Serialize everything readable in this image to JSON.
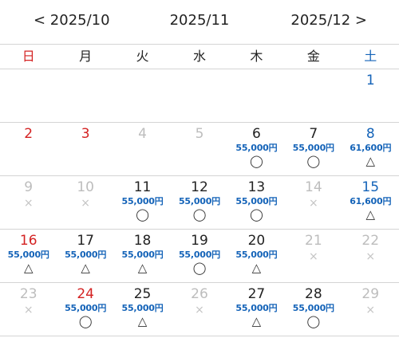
{
  "nav": {
    "prev": "< 2025/10",
    "current": "2025/11",
    "next": "2025/12 >"
  },
  "weekdays": [
    "日",
    "月",
    "火",
    "水",
    "木",
    "金",
    "土"
  ],
  "colors": {
    "sunday": "#d42222",
    "saturday": "#1463b8",
    "price": "#1463b8",
    "past": "#bdbdbd"
  },
  "weeks": [
    [
      {
        "day": "",
        "price": "",
        "mark": "",
        "type": "empty"
      },
      {
        "day": "",
        "price": "",
        "mark": "",
        "type": "empty"
      },
      {
        "day": "",
        "price": "",
        "mark": "",
        "type": "empty"
      },
      {
        "day": "",
        "price": "",
        "mark": "",
        "type": "empty"
      },
      {
        "day": "",
        "price": "",
        "mark": "",
        "type": "empty"
      },
      {
        "day": "",
        "price": "",
        "mark": "",
        "type": "empty"
      },
      {
        "day": "1",
        "price": "",
        "mark": "",
        "type": "sat"
      }
    ],
    [
      {
        "day": "2",
        "price": "",
        "mark": "",
        "type": "sun"
      },
      {
        "day": "3",
        "price": "",
        "mark": "",
        "type": "holiday"
      },
      {
        "day": "4",
        "price": "",
        "mark": "",
        "type": "past"
      },
      {
        "day": "5",
        "price": "",
        "mark": "",
        "type": "past"
      },
      {
        "day": "6",
        "price": "55,000円",
        "mark": "◯",
        "type": "normal"
      },
      {
        "day": "7",
        "price": "55,000円",
        "mark": "◯",
        "type": "normal"
      },
      {
        "day": "8",
        "price": "61,600円",
        "mark": "△",
        "type": "sat"
      }
    ],
    [
      {
        "day": "9",
        "price": "",
        "mark": "×",
        "type": "past"
      },
      {
        "day": "10",
        "price": "",
        "mark": "×",
        "type": "past"
      },
      {
        "day": "11",
        "price": "55,000円",
        "mark": "◯",
        "type": "normal"
      },
      {
        "day": "12",
        "price": "55,000円",
        "mark": "◯",
        "type": "normal"
      },
      {
        "day": "13",
        "price": "55,000円",
        "mark": "◯",
        "type": "normal"
      },
      {
        "day": "14",
        "price": "",
        "mark": "×",
        "type": "past"
      },
      {
        "day": "15",
        "price": "61,600円",
        "mark": "△",
        "type": "sat"
      }
    ],
    [
      {
        "day": "16",
        "price": "55,000円",
        "mark": "△",
        "type": "sun"
      },
      {
        "day": "17",
        "price": "55,000円",
        "mark": "△",
        "type": "normal"
      },
      {
        "day": "18",
        "price": "55,000円",
        "mark": "△",
        "type": "normal"
      },
      {
        "day": "19",
        "price": "55,000円",
        "mark": "◯",
        "type": "normal"
      },
      {
        "day": "20",
        "price": "55,000円",
        "mark": "△",
        "type": "normal"
      },
      {
        "day": "21",
        "price": "",
        "mark": "×",
        "type": "past"
      },
      {
        "day": "22",
        "price": "",
        "mark": "×",
        "type": "past"
      }
    ],
    [
      {
        "day": "23",
        "price": "",
        "mark": "×",
        "type": "sun"
      },
      {
        "day": "24",
        "price": "55,000円",
        "mark": "◯",
        "type": "holiday"
      },
      {
        "day": "25",
        "price": "55,000円",
        "mark": "△",
        "type": "normal"
      },
      {
        "day": "26",
        "price": "",
        "mark": "×",
        "type": "past"
      },
      {
        "day": "27",
        "price": "55,000円",
        "mark": "△",
        "type": "normal"
      },
      {
        "day": "28",
        "price": "55,000円",
        "mark": "◯",
        "type": "normal"
      },
      {
        "day": "29",
        "price": "",
        "mark": "×",
        "type": "past"
      }
    ]
  ]
}
